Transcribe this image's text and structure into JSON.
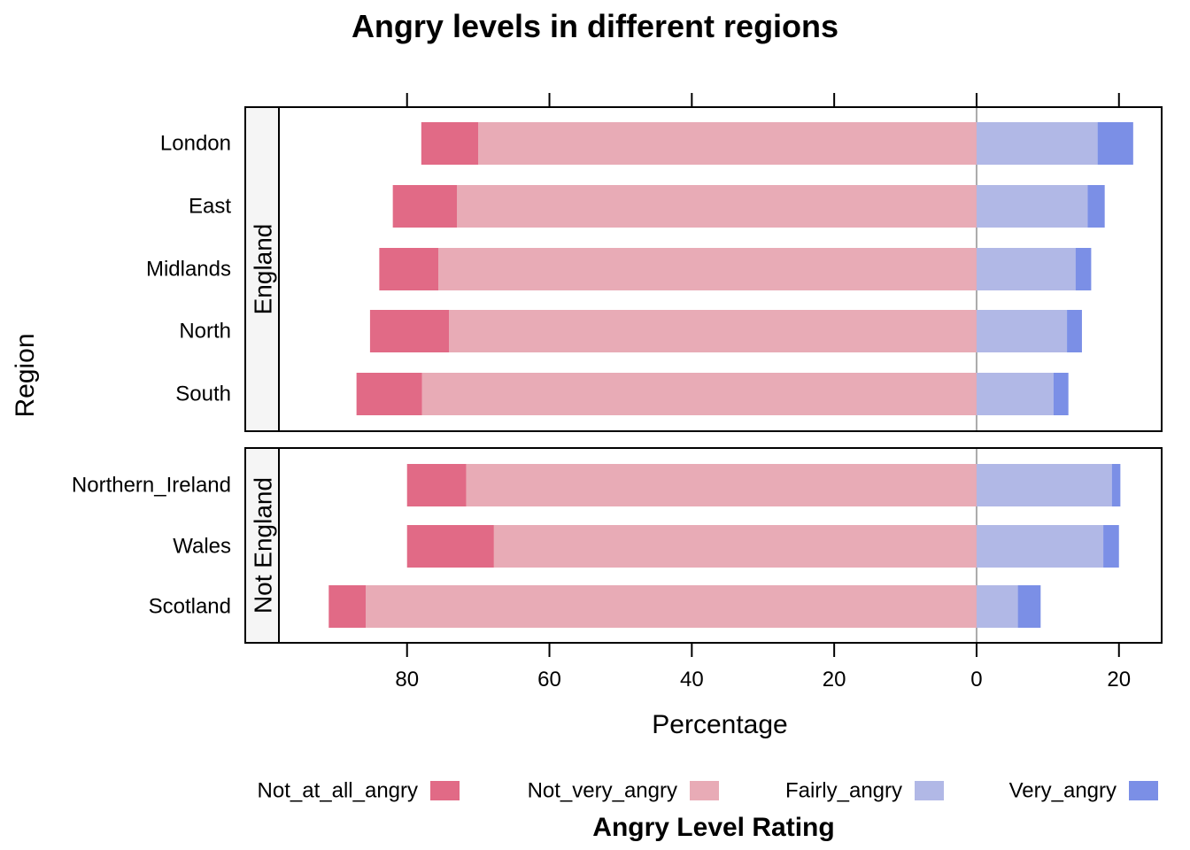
{
  "chart_data": {
    "type": "bar",
    "orientation": "horizontal",
    "diverging": true,
    "title": "Angry levels in different regions",
    "xlabel": "Percentage",
    "ylabel": "Region",
    "xlim": [
      -98,
      26
    ],
    "x_ticks": [
      -80,
      -60,
      -40,
      -20,
      0,
      20
    ],
    "x_tick_labels": [
      "80",
      "60",
      "40",
      "20",
      "0",
      "20"
    ],
    "legend": {
      "title": "Angry Level Rating",
      "placement": "bottom",
      "items": [
        {
          "name": "Not_at_all_angry",
          "color": "#E16A86"
        },
        {
          "name": "Not_very_angry",
          "color": "#E8ABB6"
        },
        {
          "name": "Fairly_angry",
          "color": "#B1B8E6"
        },
        {
          "name": "Very_angry",
          "color": "#7B8FE6"
        }
      ]
    },
    "panels": [
      {
        "strip": "England",
        "rows": [
          {
            "label": "London",
            "Not_at_all_angry": 8,
            "Not_very_angry": 70,
            "Fairly_angry": 17,
            "Very_angry": 5
          },
          {
            "label": "East",
            "Not_at_all_angry": 9,
            "Not_very_angry": 73,
            "Fairly_angry": 15.6,
            "Very_angry": 2.4
          },
          {
            "label": "Midlands",
            "Not_at_all_angry": 8.3,
            "Not_very_angry": 75.6,
            "Fairly_angry": 13.9,
            "Very_angry": 2.2
          },
          {
            "label": "North",
            "Not_at_all_angry": 11.1,
            "Not_very_angry": 74.1,
            "Fairly_angry": 12.7,
            "Very_angry": 2.1
          },
          {
            "label": "South",
            "Not_at_all_angry": 9.2,
            "Not_very_angry": 77.9,
            "Fairly_angry": 10.8,
            "Very_angry": 2.1
          }
        ]
      },
      {
        "strip": "Not England",
        "rows": [
          {
            "label": "Northern_Ireland",
            "Not_at_all_angry": 8.3,
            "Not_very_angry": 71.7,
            "Fairly_angry": 19,
            "Very_angry": 1.2
          },
          {
            "label": "Wales",
            "Not_at_all_angry": 12.2,
            "Not_very_angry": 67.8,
            "Fairly_angry": 17.8,
            "Very_angry": 2.2
          },
          {
            "label": "Scotland",
            "Not_at_all_angry": 5.2,
            "Not_very_angry": 85.8,
            "Fairly_angry": 5.8,
            "Very_angry": 3.2
          }
        ]
      }
    ]
  }
}
